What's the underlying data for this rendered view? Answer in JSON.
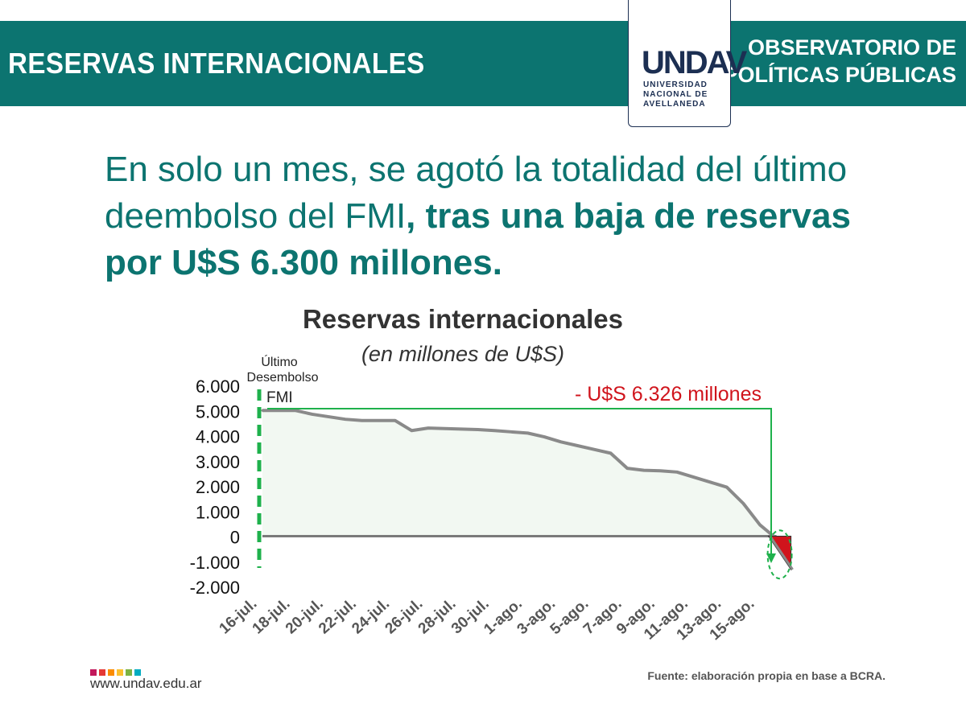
{
  "header": {
    "title": "RESERVAS INTERNACIONALES",
    "org_line1": "OBSERVATORIO DE",
    "org_line2": "POLÍTICAS PÚBLICAS",
    "logo_mark": "UNDAV",
    "logo_line1": "UNIVERSIDAD",
    "logo_line2": "NACIONAL DE",
    "logo_line3": "AVELLANEDA"
  },
  "headline": {
    "normal": "En solo un mes, se agotó la totalidad del último deembolso del FMI",
    "bold": ", tras una baja de reservas por U$S 6.300 millones."
  },
  "chart_data": {
    "type": "area",
    "title": "Reservas internacionales",
    "subtitle": "(en millones de U$S)",
    "ylim": [
      -2000,
      6000
    ],
    "yticks": [
      "6.000",
      "5.000",
      "4.000",
      "3.000",
      "2.000",
      "1.000",
      "0",
      "-1.000",
      "-2.000"
    ],
    "xtick_labels": [
      "16-jul.",
      "18-jul.",
      "20-jul.",
      "22-jul.",
      "24-jul.",
      "26-jul.",
      "28-jul.",
      "30-jul.",
      "1-ago.",
      "3-ago.",
      "5-ago.",
      "7-ago.",
      "9-ago.",
      "11-ago.",
      "13-ago.",
      "15-ago."
    ],
    "series": [
      {
        "x": [
          "16-jul.",
          "17-jul.",
          "18-jul.",
          "19-jul.",
          "20-jul.",
          "21-jul.",
          "22-jul.",
          "23-jul.",
          "24-jul.",
          "25-jul.",
          "26-jul.",
          "27-jul.",
          "28-jul.",
          "29-jul.",
          "30-jul.",
          "31-jul.",
          "1-ago.",
          "2-ago.",
          "3-ago.",
          "4-ago.",
          "5-ago.",
          "6-ago.",
          "7-ago.",
          "8-ago.",
          "9-ago.",
          "10-ago.",
          "11-ago.",
          "12-ago.",
          "13-ago.",
          "14-ago.",
          "15-ago.",
          "16-ago."
        ],
        "values": [
          5000,
          5000,
          5000,
          4850,
          4750,
          4650,
          4600,
          4600,
          4600,
          4200,
          4300,
          4280,
          4260,
          4240,
          4200,
          4150,
          4100,
          3950,
          3750,
          3600,
          3450,
          3300,
          2700,
          2620,
          2600,
          2550,
          2350,
          2150,
          1950,
          1300,
          450,
          -100
        ]
      },
      {
        "name": "negative",
        "x": [
          "16-ago.",
          "17-ago."
        ],
        "values": [
          -100,
          -1326
        ]
      }
    ],
    "annotations": {
      "event_label_line1": "Último",
      "event_label_line2": "Desembolso",
      "event_label_line3": "FMI",
      "drop_label": "- U$S 6.326 millones"
    },
    "colors": {
      "line": "#8a8a8a",
      "fill": "#f2f8f2",
      "zero_line": "#7a7a7a",
      "event": "#1fb14c",
      "negative": "#d0141c",
      "drop_label": "#d0141c"
    }
  },
  "footer": {
    "url": "www.undav.edu.ar",
    "source": "Fuente: elaboración propia en base a BCRA.",
    "dot_colors": [
      "#c2185b",
      "#e53935",
      "#fb8c00",
      "#fbc02d",
      "#7cb342",
      "#00acc1"
    ]
  },
  "colors": {
    "brand": "#0c7470",
    "logo": "#1c2f52"
  }
}
